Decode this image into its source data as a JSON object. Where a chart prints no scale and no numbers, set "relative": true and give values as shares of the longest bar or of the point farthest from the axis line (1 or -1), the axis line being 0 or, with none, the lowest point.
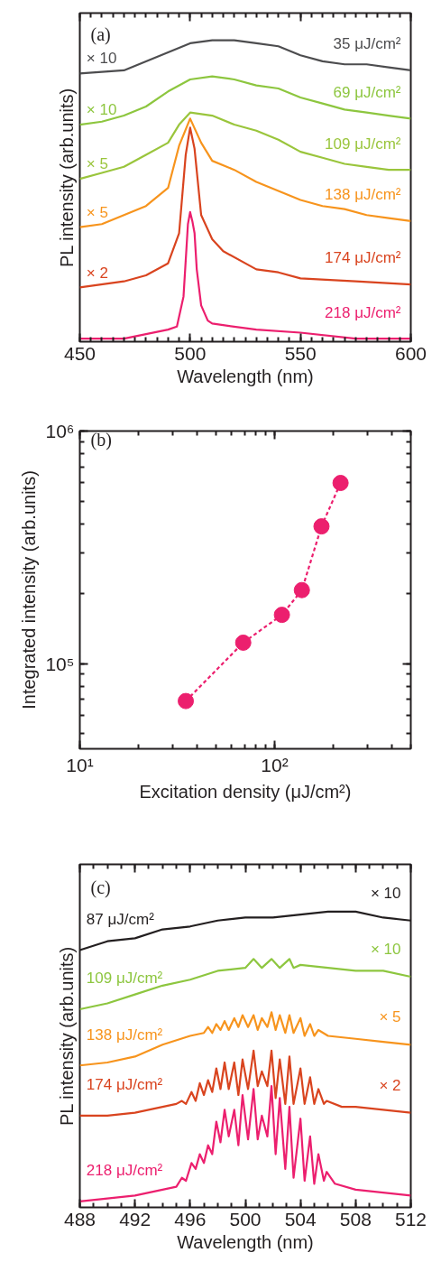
{
  "chart_data": [
    {
      "type": "line",
      "relative": true,
      "xlabel": "Wavelength (nm)",
      "ylabel": "PL intensity (arb.units)",
      "xlim": [
        450,
        600
      ],
      "xticks": [
        450,
        500,
        550,
        600
      ],
      "tick_labels": "x",
      "annotations": [
        "(a)",
        "× 10",
        "× 10",
        "× 5",
        "× 5",
        "× 2"
      ],
      "series": [
        {
          "name": "35 μJ/cm²",
          "color": "#4d4d4f",
          "x": [
            450,
            470,
            480,
            490,
            500,
            510,
            520,
            530,
            540,
            550,
            560,
            570,
            580,
            590,
            600
          ],
          "values": [
            0.89,
            0.9,
            0.93,
            0.96,
            0.99,
            1.0,
            1.0,
            0.99,
            0.98,
            0.95,
            0.93,
            0.92,
            0.92,
            0.91,
            0.9
          ]
        },
        {
          "name": "69 μJ/cm²",
          "color": "#8dc63f",
          "x": [
            450,
            460,
            470,
            480,
            490,
            500,
            510,
            520,
            530,
            540,
            550,
            560,
            570,
            580,
            590,
            600
          ],
          "values": [
            0.72,
            0.73,
            0.75,
            0.78,
            0.83,
            0.87,
            0.88,
            0.87,
            0.85,
            0.84,
            0.81,
            0.79,
            0.77,
            0.76,
            0.75,
            0.74
          ]
        },
        {
          "name": "109 μJ/cm²",
          "color": "#9ac53c",
          "x": [
            450,
            460,
            470,
            480,
            490,
            495,
            500,
            510,
            520,
            530,
            540,
            550,
            560,
            570,
            580,
            590,
            600
          ],
          "values": [
            0.54,
            0.56,
            0.58,
            0.62,
            0.66,
            0.72,
            0.76,
            0.75,
            0.72,
            0.7,
            0.67,
            0.63,
            0.61,
            0.59,
            0.58,
            0.57,
            0.57
          ]
        },
        {
          "name": "138 μJ/cm²",
          "color": "#f7941d",
          "x": [
            450,
            460,
            470,
            480,
            490,
            495,
            500,
            505,
            510,
            520,
            530,
            540,
            550,
            560,
            570,
            580,
            590,
            600
          ],
          "values": [
            0.38,
            0.39,
            0.42,
            0.45,
            0.51,
            0.65,
            0.74,
            0.66,
            0.6,
            0.57,
            0.53,
            0.5,
            0.47,
            0.45,
            0.44,
            0.42,
            0.41,
            0.4
          ]
        },
        {
          "name": "174 μJ/cm²",
          "color": "#d9441f",
          "x": [
            450,
            470,
            480,
            490,
            495,
            498,
            500,
            502,
            505,
            510,
            515,
            530,
            540,
            550,
            575,
            600
          ],
          "values": [
            0.18,
            0.2,
            0.22,
            0.26,
            0.36,
            0.62,
            0.71,
            0.64,
            0.42,
            0.34,
            0.3,
            0.24,
            0.23,
            0.21,
            0.2,
            0.19
          ]
        },
        {
          "name": "218 μJ/cm²",
          "color": "#ec1f6e",
          "x": [
            450,
            470,
            490,
            494,
            497,
            498,
            499,
            500,
            501,
            502,
            503,
            505,
            508,
            510,
            530,
            550,
            575,
            600
          ],
          "values": [
            0.01,
            0.01,
            0.04,
            0.05,
            0.15,
            0.27,
            0.39,
            0.43,
            0.4,
            0.36,
            0.24,
            0.12,
            0.07,
            0.06,
            0.04,
            0.03,
            0.01,
            0.01
          ]
        }
      ]
    },
    {
      "type": "line",
      "log": "xy",
      "marker": "circle",
      "line_style": "dashed",
      "xlabel": "Excitation density (μJ/cm²)",
      "ylabel": "Integrated intensity (arb.units)",
      "xlim": [
        10,
        500
      ],
      "ylim": [
        43000,
        1000000
      ],
      "xticks": [
        {
          "value": 10,
          "label": "10¹"
        },
        {
          "value": 100,
          "label": "10²"
        }
      ],
      "yticks": [
        {
          "value": 100000,
          "label": "10⁵"
        },
        {
          "value": 1000000,
          "label": "10⁶"
        }
      ],
      "annotations": [
        "(b)"
      ],
      "x": [
        35,
        69,
        109,
        138,
        174,
        218
      ],
      "series": [
        {
          "color": "#ec1f6e",
          "values": [
            69000,
            123000,
            162000,
            207000,
            389000,
            598000
          ]
        }
      ]
    },
    {
      "type": "line",
      "relative": true,
      "xlabel": "Wavelength (nm)",
      "ylabel": "PL intensity (arb.units)",
      "xlim": [
        488,
        512
      ],
      "xticks": [
        488,
        492,
        496,
        500,
        504,
        508,
        512
      ],
      "tick_labels": "x",
      "annotations": [
        "(c)",
        "× 10",
        "× 10",
        "× 5",
        "× 2"
      ],
      "series": [
        {
          "name": "87 μJ/cm²",
          "color": "#231f20",
          "x": [
            488,
            490,
            492,
            494,
            496,
            498,
            500,
            502,
            504,
            506,
            508,
            510,
            512
          ],
          "values": [
            0.87,
            0.9,
            0.91,
            0.94,
            0.95,
            0.97,
            0.98,
            0.98,
            0.99,
            1.0,
            1.0,
            0.98,
            0.97
          ]
        },
        {
          "name": "109 μJ/cm²",
          "color": "#8dc63f",
          "x": [
            488,
            490,
            492,
            494,
            496,
            498,
            500,
            500.6,
            501.2,
            501.9,
            502.5,
            503.2,
            503.5,
            504,
            506,
            508,
            510,
            512
          ],
          "values": [
            0.67,
            0.69,
            0.72,
            0.75,
            0.77,
            0.8,
            0.81,
            0.84,
            0.81,
            0.84,
            0.81,
            0.84,
            0.81,
            0.82,
            0.81,
            0.8,
            0.8,
            0.78
          ]
        },
        {
          "name": "138 μJ/cm²",
          "color": "#f7941d",
          "x": [
            488,
            490,
            492,
            494,
            496,
            497,
            497.3,
            497.6,
            497.9,
            498.2,
            498.5,
            498.8,
            499.2,
            499.5,
            499.8,
            500.2,
            500.6,
            500.9,
            501.2,
            501.6,
            501.9,
            502.2,
            502.5,
            502.9,
            503.2,
            503.5,
            504.0,
            504.3,
            504.7,
            505.0,
            505.3,
            506,
            508,
            510,
            512
          ],
          "values": [
            0.48,
            0.49,
            0.51,
            0.55,
            0.58,
            0.59,
            0.61,
            0.59,
            0.62,
            0.6,
            0.63,
            0.6,
            0.64,
            0.61,
            0.65,
            0.61,
            0.65,
            0.6,
            0.64,
            0.61,
            0.66,
            0.6,
            0.65,
            0.59,
            0.65,
            0.59,
            0.64,
            0.58,
            0.62,
            0.58,
            0.6,
            0.58,
            0.57,
            0.56,
            0.55
          ]
        },
        {
          "name": "174 μJ/cm²",
          "color": "#d9441f",
          "x": [
            488,
            490,
            492,
            494,
            495,
            495.4,
            495.7,
            496.1,
            496.4,
            496.7,
            497.0,
            497.3,
            497.6,
            497.9,
            498.2,
            498.5,
            498.8,
            499.2,
            499.5,
            499.8,
            500.2,
            500.6,
            500.9,
            501.2,
            501.6,
            501.9,
            502.2,
            502.5,
            502.9,
            503.2,
            503.5,
            504.0,
            504.3,
            504.7,
            505.0,
            505.3,
            505.7,
            505.9,
            507,
            508,
            510,
            512
          ],
          "values": [
            0.31,
            0.31,
            0.32,
            0.34,
            0.35,
            0.36,
            0.35,
            0.39,
            0.36,
            0.42,
            0.38,
            0.43,
            0.39,
            0.47,
            0.4,
            0.49,
            0.4,
            0.49,
            0.38,
            0.5,
            0.4,
            0.53,
            0.41,
            0.46,
            0.41,
            0.53,
            0.37,
            0.5,
            0.35,
            0.51,
            0.35,
            0.47,
            0.35,
            0.44,
            0.35,
            0.4,
            0.35,
            0.36,
            0.34,
            0.34,
            0.33,
            0.32
          ]
        },
        {
          "name": "218 μJ/cm²",
          "color": "#ec1f6e",
          "x": [
            488,
            490,
            492,
            494,
            495,
            495.4,
            495.7,
            496.1,
            496.4,
            496.7,
            497.0,
            497.3,
            497.6,
            497.9,
            498.2,
            498.5,
            498.8,
            499.2,
            499.5,
            499.8,
            500.2,
            500.6,
            500.9,
            501.2,
            501.6,
            501.9,
            502.2,
            502.5,
            502.9,
            503.2,
            503.5,
            504.0,
            504.3,
            504.7,
            505.0,
            505.3,
            505.7,
            505.9,
            506.5,
            508,
            510,
            512
          ],
          "values": [
            0.02,
            0.03,
            0.04,
            0.06,
            0.07,
            0.1,
            0.09,
            0.15,
            0.13,
            0.18,
            0.15,
            0.21,
            0.18,
            0.29,
            0.22,
            0.33,
            0.24,
            0.33,
            0.21,
            0.38,
            0.23,
            0.4,
            0.23,
            0.31,
            0.24,
            0.41,
            0.18,
            0.37,
            0.13,
            0.34,
            0.1,
            0.3,
            0.09,
            0.24,
            0.08,
            0.18,
            0.09,
            0.12,
            0.08,
            0.06,
            0.05,
            0.04
          ]
        }
      ]
    }
  ]
}
